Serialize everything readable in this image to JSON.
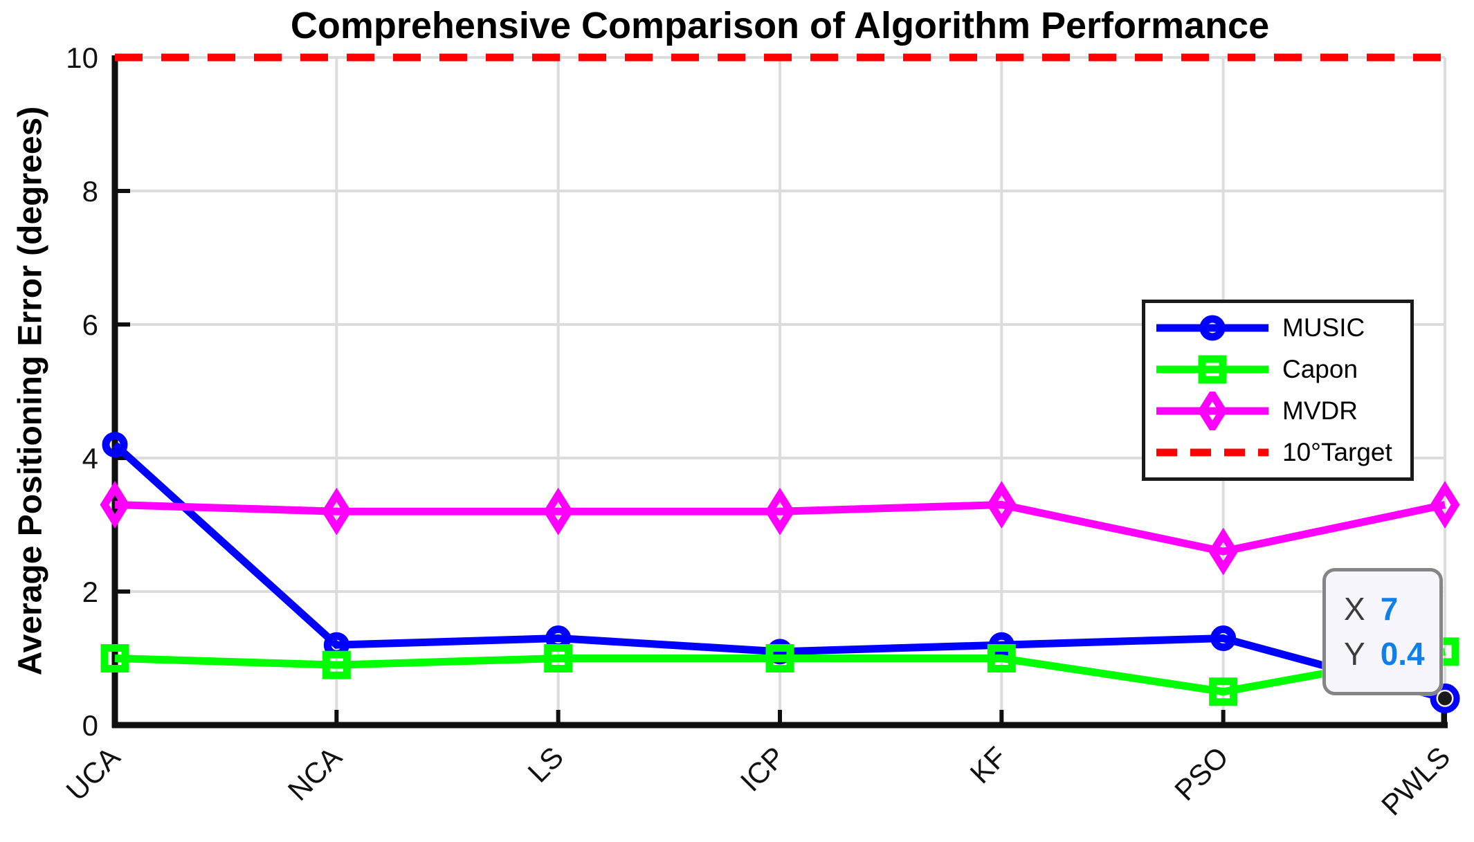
{
  "figure": {
    "title": "Comprehensive Comparison of Algorithm Performance",
    "ylabel": "Average Positioning Error (degrees)"
  },
  "chart_data": {
    "type": "line",
    "title": "Comprehensive Comparison of Algorithm Performance",
    "xlabel": "",
    "ylabel": "Average Positioning Error (degrees)",
    "categories": [
      "UCA",
      "NCA",
      "LS",
      "ICP",
      "KF",
      "PSO",
      "PWLS"
    ],
    "series": [
      {
        "name": "MUSIC",
        "color": "#0000FF",
        "marker": "circle",
        "style": "solid",
        "values": [
          4.2,
          1.2,
          1.3,
          1.1,
          1.2,
          1.3,
          0.4
        ]
      },
      {
        "name": "Capon",
        "color": "#00FF00",
        "marker": "square",
        "style": "solid",
        "values": [
          1.0,
          0.9,
          1.0,
          1.0,
          1.0,
          0.5,
          1.1
        ]
      },
      {
        "name": "MVDR",
        "color": "#FF00FF",
        "marker": "diamond",
        "style": "solid",
        "values": [
          3.3,
          3.2,
          3.2,
          3.2,
          3.3,
          2.6,
          3.3
        ]
      },
      {
        "name": "10°Target",
        "color": "#FF0000",
        "marker": "none",
        "style": "dashed",
        "values": [
          10,
          10,
          10,
          10,
          10,
          10,
          10
        ]
      }
    ],
    "ylim": [
      0,
      10
    ],
    "xlim": [
      1,
      7
    ],
    "yticks": [
      0,
      2,
      4,
      6,
      8,
      10
    ],
    "grid": true,
    "legend_position": "upper right"
  },
  "datatip": {
    "x_key": "X",
    "x_value": "7",
    "y_key": "Y",
    "y_value": "0.4",
    "value_color": "#1080e8",
    "attached_series": "MUSIC",
    "attached_category": "PWLS"
  },
  "style_colors": {
    "grid": "#dcdcdc",
    "axis": "#0f0f0f",
    "tick_label": "#111111",
    "datatip_bg": "#f6f6fc",
    "datatip_border": "#858585",
    "marker_highlight_fill": "#f5eed8",
    "marker_highlight_dot": "#1a1a1a"
  }
}
